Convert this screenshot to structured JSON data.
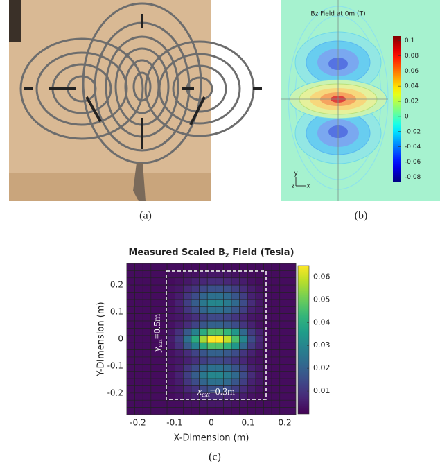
{
  "photo": {
    "caption": "(a)"
  },
  "chart_data": [
    {
      "type": "contour",
      "title": "Bz Field at 0m (T)",
      "caption": "(b)",
      "axes_labels": [
        "y",
        "z",
        "x"
      ],
      "colormap": "jet",
      "clim": [
        -0.087,
        0.106
      ],
      "cticks": [
        0.1,
        0.08,
        0.06,
        0.04,
        0.02,
        0,
        -0.02,
        -0.04,
        -0.06,
        -0.08
      ]
    },
    {
      "type": "heatmap",
      "title": {
        "main": "Measured Scaled B",
        "sub": "z",
        "end": " Field (Tesla)"
      },
      "caption": "(c)",
      "xlabel": "X-Dimension (m)",
      "ylabel": "Y-Dimension (m)",
      "xlim": [
        -0.23,
        0.23
      ],
      "ylim": [
        -0.28,
        0.28
      ],
      "xticks": [
        -0.2,
        -0.1,
        0,
        0.1,
        0.2
      ],
      "yticks": [
        -0.2,
        -0.1,
        0,
        0.1,
        0.2
      ],
      "colormap": "viridis",
      "clim": [
        0,
        0.065
      ],
      "cticks": [
        0.01,
        0.02,
        0.03,
        0.04,
        0.05,
        0.06
      ],
      "annotations": [
        {
          "var": "y",
          "sub": "ext",
          "text": "=0.5m"
        },
        {
          "var": "x",
          "sub": "ext",
          "text": "=0.3m"
        }
      ],
      "values": [
        [
          0.002,
          0.002,
          0.002,
          0.002,
          0.002,
          0.002,
          0.002,
          0.002,
          0.002,
          0.002,
          0.002,
          0.002,
          0.002,
          0.002,
          0.002,
          0.002,
          0.002,
          0.002,
          0.002,
          0.002,
          0.002
        ],
        [
          0.002,
          0.002,
          0.002,
          0.002,
          0.002,
          0.002,
          0.002,
          0.003,
          0.003,
          0.004,
          0.004,
          0.004,
          0.004,
          0.003,
          0.003,
          0.002,
          0.002,
          0.002,
          0.002,
          0.002,
          0.002
        ],
        [
          0.002,
          0.002,
          0.002,
          0.002,
          0.002,
          0.002,
          0.003,
          0.004,
          0.006,
          0.007,
          0.008,
          0.008,
          0.007,
          0.006,
          0.005,
          0.003,
          0.002,
          0.002,
          0.002,
          0.002,
          0.002
        ],
        [
          0.002,
          0.002,
          0.002,
          0.002,
          0.002,
          0.003,
          0.004,
          0.007,
          0.01,
          0.014,
          0.016,
          0.016,
          0.015,
          0.012,
          0.008,
          0.005,
          0.003,
          0.002,
          0.002,
          0.002,
          0.002
        ],
        [
          0.002,
          0.002,
          0.002,
          0.002,
          0.002,
          0.003,
          0.005,
          0.01,
          0.015,
          0.021,
          0.024,
          0.024,
          0.022,
          0.017,
          0.012,
          0.006,
          0.004,
          0.002,
          0.002,
          0.002,
          0.002
        ],
        [
          0.002,
          0.002,
          0.002,
          0.002,
          0.002,
          0.003,
          0.006,
          0.012,
          0.019,
          0.026,
          0.03,
          0.03,
          0.027,
          0.022,
          0.015,
          0.008,
          0.004,
          0.002,
          0.002,
          0.002,
          0.002
        ],
        [
          0.002,
          0.002,
          0.002,
          0.002,
          0.002,
          0.003,
          0.005,
          0.01,
          0.015,
          0.021,
          0.024,
          0.024,
          0.022,
          0.017,
          0.012,
          0.006,
          0.004,
          0.002,
          0.002,
          0.002,
          0.002
        ],
        [
          0.002,
          0.002,
          0.002,
          0.002,
          0.002,
          0.003,
          0.004,
          0.006,
          0.009,
          0.012,
          0.014,
          0.014,
          0.013,
          0.01,
          0.007,
          0.004,
          0.003,
          0.002,
          0.002,
          0.002,
          0.002
        ],
        [
          0.002,
          0.002,
          0.002,
          0.002,
          0.002,
          0.003,
          0.005,
          0.008,
          0.013,
          0.017,
          0.02,
          0.02,
          0.018,
          0.015,
          0.01,
          0.006,
          0.003,
          0.002,
          0.002,
          0.002,
          0.002
        ],
        [
          0.002,
          0.002,
          0.002,
          0.002,
          0.002,
          0.004,
          0.009,
          0.018,
          0.029,
          0.04,
          0.047,
          0.047,
          0.043,
          0.034,
          0.022,
          0.011,
          0.006,
          0.002,
          0.002,
          0.002,
          0.002
        ],
        [
          0.002,
          0.002,
          0.002,
          0.002,
          0.002,
          0.005,
          0.011,
          0.024,
          0.04,
          0.056,
          0.065,
          0.065,
          0.059,
          0.046,
          0.03,
          0.015,
          0.007,
          0.002,
          0.002,
          0.002,
          0.002
        ],
        [
          0.002,
          0.002,
          0.002,
          0.002,
          0.002,
          0.004,
          0.009,
          0.018,
          0.029,
          0.04,
          0.047,
          0.047,
          0.043,
          0.034,
          0.022,
          0.011,
          0.006,
          0.002,
          0.002,
          0.002,
          0.002
        ],
        [
          0.002,
          0.002,
          0.002,
          0.002,
          0.002,
          0.003,
          0.005,
          0.008,
          0.013,
          0.017,
          0.02,
          0.02,
          0.018,
          0.015,
          0.01,
          0.006,
          0.003,
          0.002,
          0.002,
          0.002,
          0.002
        ],
        [
          0.002,
          0.002,
          0.002,
          0.002,
          0.002,
          0.003,
          0.004,
          0.006,
          0.009,
          0.012,
          0.014,
          0.014,
          0.013,
          0.01,
          0.007,
          0.004,
          0.003,
          0.002,
          0.002,
          0.002,
          0.002
        ],
        [
          0.002,
          0.002,
          0.002,
          0.002,
          0.002,
          0.003,
          0.005,
          0.01,
          0.015,
          0.021,
          0.024,
          0.024,
          0.022,
          0.017,
          0.012,
          0.006,
          0.004,
          0.002,
          0.002,
          0.002,
          0.002
        ],
        [
          0.002,
          0.002,
          0.002,
          0.002,
          0.002,
          0.003,
          0.006,
          0.012,
          0.019,
          0.026,
          0.03,
          0.03,
          0.027,
          0.022,
          0.015,
          0.008,
          0.004,
          0.002,
          0.002,
          0.002,
          0.002
        ],
        [
          0.002,
          0.002,
          0.002,
          0.002,
          0.002,
          0.003,
          0.005,
          0.01,
          0.015,
          0.021,
          0.024,
          0.024,
          0.022,
          0.017,
          0.012,
          0.006,
          0.004,
          0.002,
          0.002,
          0.002,
          0.002
        ],
        [
          0.002,
          0.002,
          0.002,
          0.002,
          0.002,
          0.003,
          0.004,
          0.007,
          0.01,
          0.014,
          0.016,
          0.016,
          0.015,
          0.012,
          0.008,
          0.005,
          0.003,
          0.002,
          0.002,
          0.002,
          0.002
        ],
        [
          0.002,
          0.002,
          0.002,
          0.002,
          0.002,
          0.002,
          0.003,
          0.004,
          0.006,
          0.007,
          0.008,
          0.008,
          0.007,
          0.006,
          0.005,
          0.003,
          0.002,
          0.002,
          0.002,
          0.002,
          0.002
        ],
        [
          0.002,
          0.002,
          0.002,
          0.002,
          0.002,
          0.002,
          0.002,
          0.003,
          0.003,
          0.004,
          0.004,
          0.004,
          0.004,
          0.003,
          0.003,
          0.002,
          0.002,
          0.002,
          0.002,
          0.002,
          0.002
        ],
        [
          0.002,
          0.002,
          0.002,
          0.002,
          0.002,
          0.002,
          0.002,
          0.002,
          0.002,
          0.002,
          0.002,
          0.002,
          0.002,
          0.002,
          0.002,
          0.002,
          0.002,
          0.002,
          0.002,
          0.002,
          0.002
        ]
      ]
    }
  ]
}
